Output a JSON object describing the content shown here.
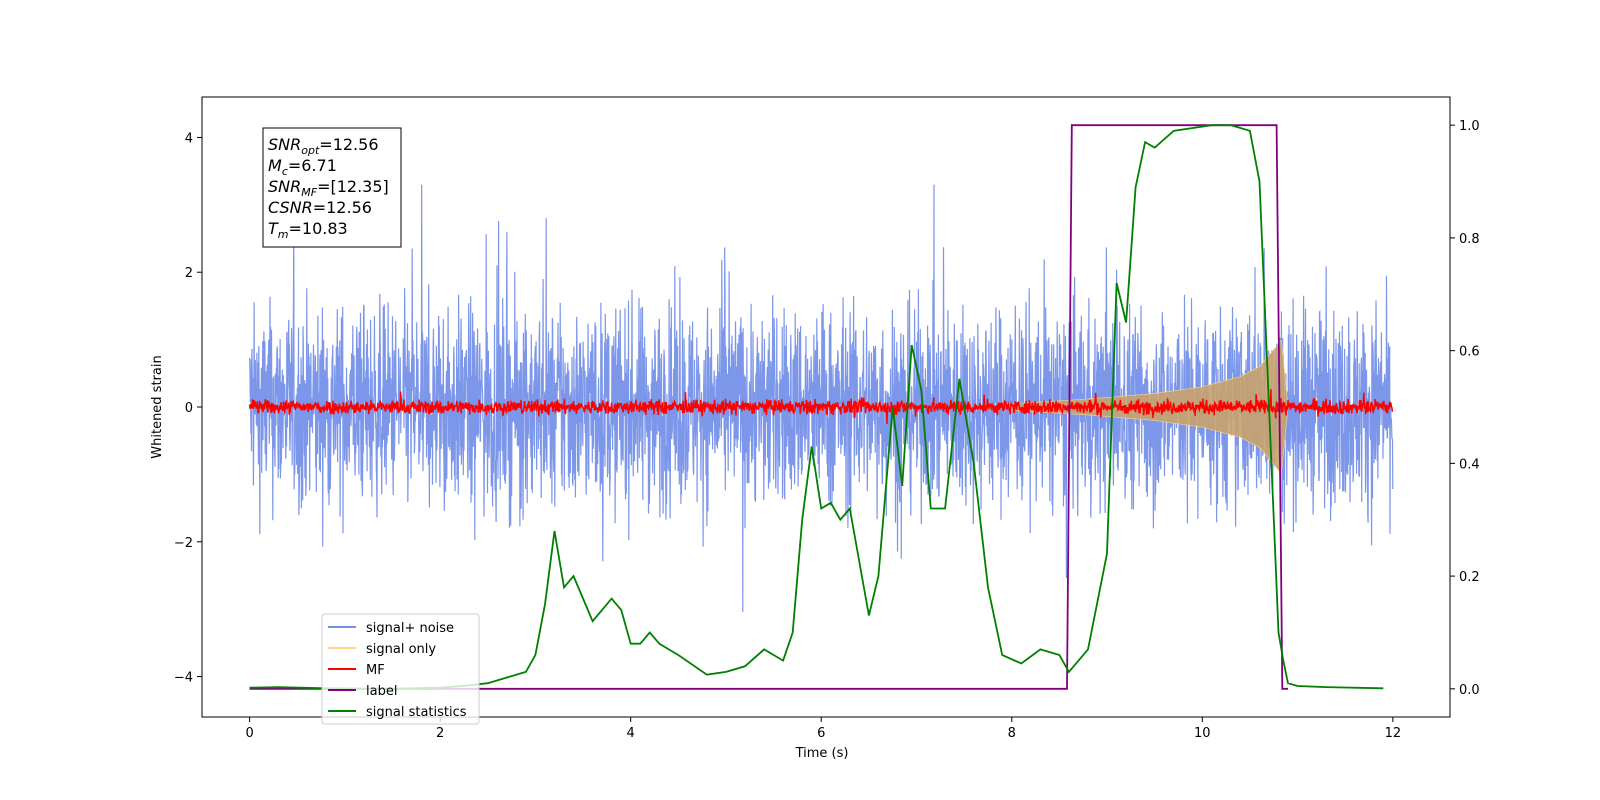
{
  "chart_data": {
    "type": "line",
    "xlabel": "Time (s)",
    "ylabel": "Whitened strain",
    "xlim": [
      -0.5,
      12.6
    ],
    "ylim": [
      -4.6,
      4.6
    ],
    "y2lim": [
      -0.05,
      1.05
    ],
    "xticks": [
      "0",
      "2",
      "4",
      "6",
      "8",
      "10",
      "12"
    ],
    "yticks": [
      "−4",
      "−2",
      "0",
      "2",
      "4"
    ],
    "y2ticks": [
      "0.0",
      "0.2",
      "0.4",
      "0.6",
      "0.8",
      "1.0"
    ],
    "grid": false,
    "legend_position": "lower-left",
    "annotation": {
      "lines": [
        {
          "sym": "SNR",
          "sub": "opt",
          "value": "=12.56"
        },
        {
          "sym": "M",
          "sub": "c",
          "value": "=6.71"
        },
        {
          "sym": "SNR",
          "sub": "MF",
          "value": "=[12.35]"
        },
        {
          "sym": "CSNR",
          "sub": "",
          "value": "=12.56"
        },
        {
          "sym": "T",
          "sub": "m",
          "value": "=10.83"
        }
      ]
    },
    "series": [
      {
        "name": "signal+ noise",
        "color": "#7590e8",
        "axis": "left",
        "description": "noise band approx ±2 with spikes to ±3.3",
        "envelope": [
          -3.3,
          3.3
        ]
      },
      {
        "name": "signal only",
        "color": "#ffd58a",
        "axis": "left",
        "description": "chirp growing to ±1 at t=10.83",
        "envelope_x": [
          8.0,
          8.6,
          9.0,
          9.5,
          10.0,
          10.4,
          10.6,
          10.75,
          10.83,
          10.9
        ],
        "envelope_y": [
          0.05,
          0.1,
          0.14,
          0.2,
          0.3,
          0.45,
          0.6,
          0.85,
          1.0,
          0.0
        ]
      },
      {
        "name": "MF",
        "color": "#ff0000",
        "axis": "left",
        "description": "small noise around 0, amplitude ≈ 0.15"
      },
      {
        "name": "label",
        "color": "#800080",
        "axis": "right",
        "x": [
          0,
          8.58,
          8.63,
          10.78,
          10.84,
          10.9
        ],
        "y": [
          0,
          0,
          1,
          1,
          0,
          0
        ]
      },
      {
        "name": "signal statistics",
        "color": "#008000",
        "axis": "right",
        "x": [
          0,
          0.3,
          0.8,
          1.5,
          2.0,
          2.3,
          2.5,
          2.7,
          2.9,
          3.0,
          3.1,
          3.2,
          3.3,
          3.4,
          3.5,
          3.6,
          3.7,
          3.8,
          3.9,
          4.0,
          4.1,
          4.2,
          4.3,
          4.4,
          4.5,
          4.8,
          5.0,
          5.2,
          5.4,
          5.6,
          5.7,
          5.8,
          5.9,
          6.0,
          6.1,
          6.2,
          6.3,
          6.5,
          6.6,
          6.75,
          6.85,
          6.95,
          7.05,
          7.15,
          7.3,
          7.45,
          7.6,
          7.75,
          7.9,
          8.1,
          8.3,
          8.5,
          8.6,
          8.8,
          9.0,
          9.1,
          9.2,
          9.3,
          9.4,
          9.5,
          9.7,
          9.9,
          10.1,
          10.3,
          10.5,
          10.6,
          10.7,
          10.75,
          10.8,
          10.85,
          10.9,
          11.0,
          11.3,
          11.9
        ],
        "y": [
          0.002,
          0.003,
          0.001,
          0.0,
          0.002,
          0.006,
          0.01,
          0.02,
          0.03,
          0.06,
          0.15,
          0.28,
          0.18,
          0.2,
          0.16,
          0.12,
          0.14,
          0.16,
          0.14,
          0.08,
          0.08,
          0.1,
          0.08,
          0.07,
          0.06,
          0.025,
          0.03,
          0.04,
          0.07,
          0.05,
          0.1,
          0.3,
          0.43,
          0.32,
          0.33,
          0.3,
          0.32,
          0.13,
          0.2,
          0.5,
          0.36,
          0.61,
          0.53,
          0.32,
          0.32,
          0.55,
          0.4,
          0.18,
          0.06,
          0.045,
          0.07,
          0.06,
          0.03,
          0.07,
          0.24,
          0.72,
          0.65,
          0.89,
          0.97,
          0.96,
          0.99,
          0.995,
          1.0,
          1.0,
          0.99,
          0.9,
          0.5,
          0.3,
          0.1,
          0.05,
          0.01,
          0.005,
          0.003,
          0.001
        ]
      }
    ]
  }
}
